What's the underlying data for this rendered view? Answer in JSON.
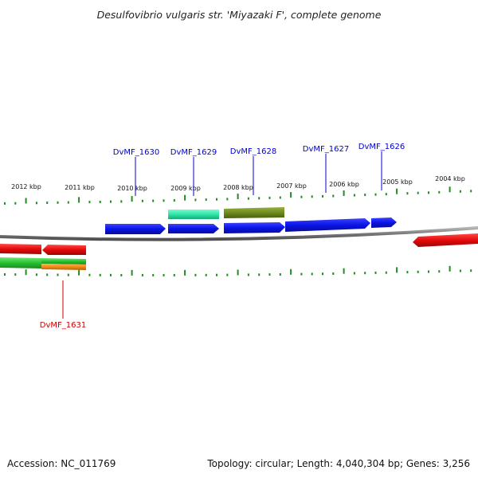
{
  "title": "Desulfovibrio vulgaris str. 'Miyazaki F', complete genome",
  "footer": {
    "accession": "Accession: NC_011769",
    "summary": "Topology: circular; Length: 4,040,304 bp; Genes: 3,256"
  },
  "colors": {
    "backbone": "#808080",
    "tick": "#228B22",
    "forward_label": "#0000CC",
    "reverse_label": "#CC0000"
  },
  "kbp_labels": [
    "2012 kbp",
    "2011 kbp",
    "2010 kbp",
    "2009 kbp",
    "2008 kbp",
    "2007 kbp",
    "2006 kbp",
    "2005 kbp",
    "2004 kbp"
  ],
  "gene_labels": [
    {
      "id": "DvMF_1630",
      "strand": "forward"
    },
    {
      "id": "DvMF_1629",
      "strand": "forward"
    },
    {
      "id": "DvMF_1628",
      "strand": "forward"
    },
    {
      "id": "DvMF_1627",
      "strand": "forward"
    },
    {
      "id": "DvMF_1626",
      "strand": "forward"
    },
    {
      "id": "DvMF_1631",
      "strand": "reverse"
    }
  ],
  "feature_colors": {
    "cds_forward": "#0A14E6",
    "cds_reverse": "#E60A0A",
    "rrna_like": "#2CE8A8",
    "olive": "#6E8A1E",
    "green": "#27C22F",
    "orange": "#F08A14"
  }
}
